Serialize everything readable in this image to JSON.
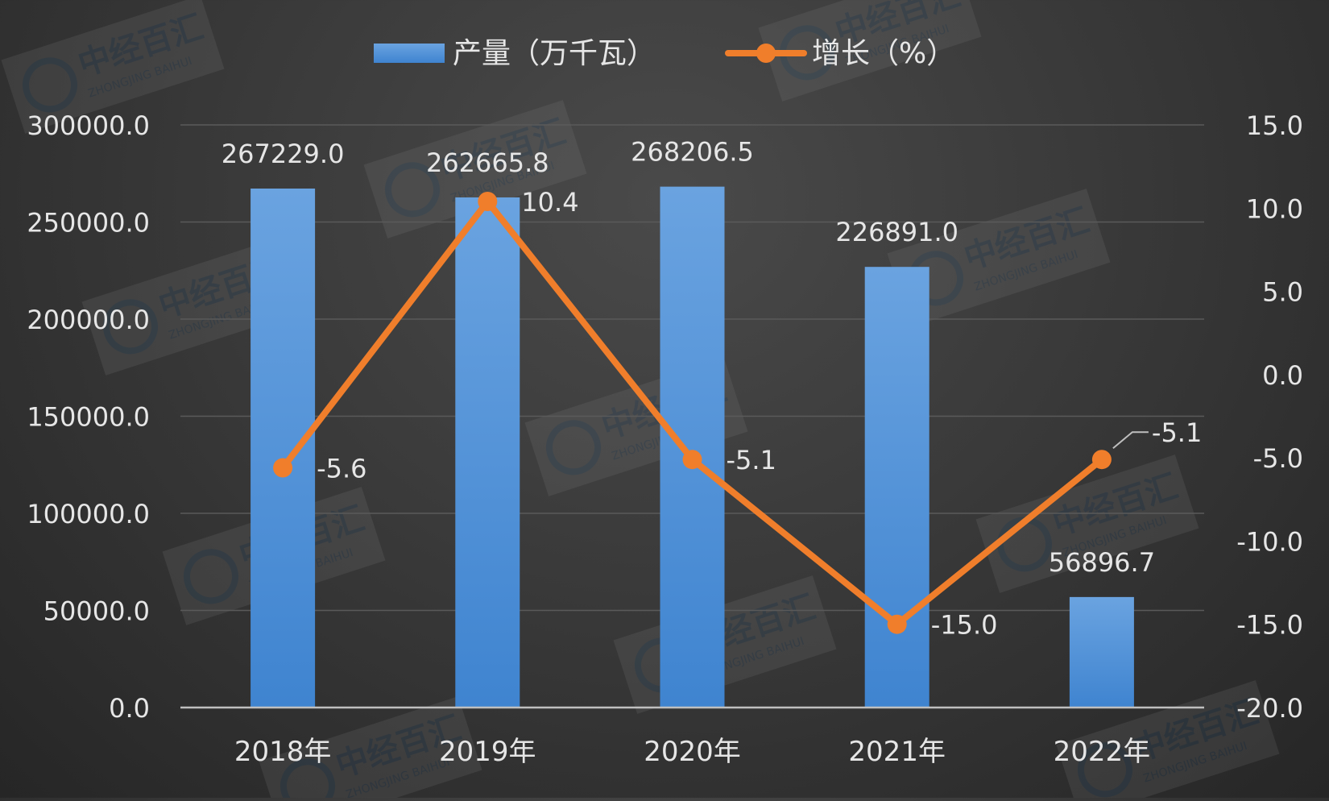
{
  "chart_data": {
    "type": "bar",
    "categories": [
      "2018年",
      "2019年",
      "2020年",
      "2021年",
      "2022年"
    ],
    "series": [
      {
        "name": "产量（万千瓦）",
        "type": "bar",
        "axis": "left",
        "values": [
          267229.0,
          262665.8,
          268206.5,
          226891.0,
          56896.7
        ],
        "labels": [
          "267229.0",
          "262665.8",
          "268206.5",
          "226891.0",
          "56896.7"
        ]
      },
      {
        "name": "增长（%）",
        "type": "line",
        "axis": "right",
        "values": [
          -5.6,
          10.4,
          -5.1,
          -15.0,
          -5.1
        ],
        "labels": [
          "-5.6",
          "10.4",
          "-5.1",
          "-15.0",
          "-5.1"
        ]
      }
    ],
    "y_left": {
      "min": 0,
      "max": 300000,
      "ticks": [
        "0.0",
        "50000.0",
        "100000.0",
        "150000.0",
        "200000.0",
        "250000.0",
        "300000.0"
      ]
    },
    "y_right": {
      "min": -20,
      "max": 15,
      "ticks": [
        "-20.0",
        "-15.0",
        "-10.0",
        "-5.0",
        "0.0",
        "5.0",
        "10.0",
        "15.0"
      ]
    },
    "legend_position": "top",
    "grid": true,
    "watermark": {
      "cn": "中经百汇",
      "en": "ZHONGJING BAIHUI"
    },
    "colors": {
      "bar": "#4f8fd6",
      "bar_top": "#6aa3e0",
      "line": "#f07e2b",
      "text": "#e6e6e6",
      "grid": "#5a5a5a",
      "axis": "#bfbfbf"
    }
  }
}
